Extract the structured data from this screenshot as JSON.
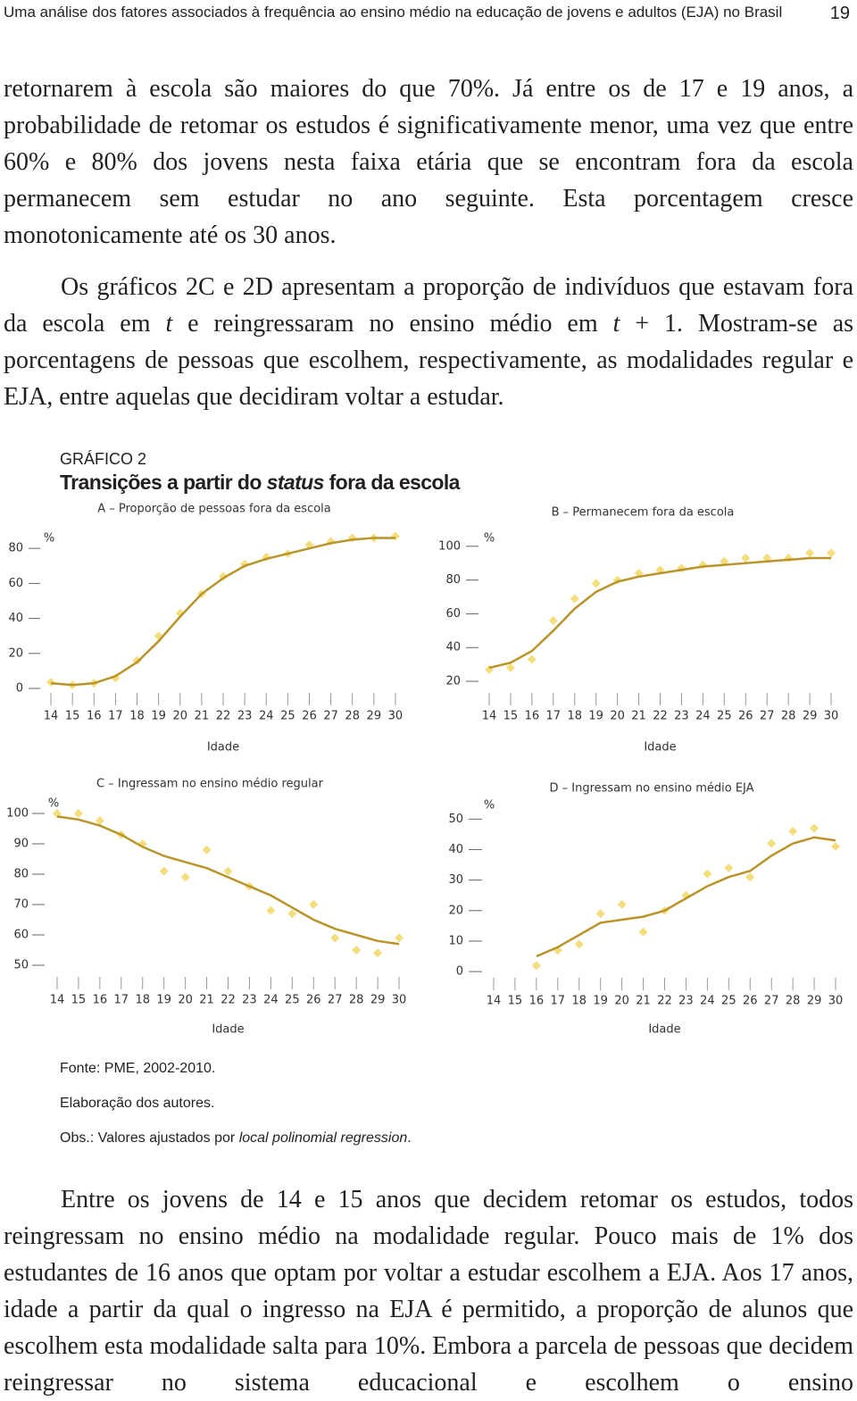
{
  "header": {
    "running_title": "Uma análise dos fatores associados à frequência ao ensino médio na educação de jovens e adultos (EJA) no Brasil",
    "page_number": "19"
  },
  "paragraphs": [
    [
      "retornarem à escola são maiores do que 70%. Já entre os de 17 e 19 anos, a probabilidade de retomar os estudos é significativamente menor, uma vez que entre 60% e 80% dos jovens nesta faixa etária que se encontram fora da escola permanecem sem estudar no ano seguinte. Esta porcentagem cresce monotonicamente até os 30 anos."
    ],
    [
      "Os gráficos 2C e 2D apresentam a proporção de indivíduos que estavam fora da escola em ",
      "t",
      " e reingressaram no ensino médio em ",
      "t",
      " + 1. Mostram-se as porcentagens de pessoas que escolhem, respectivamente, as modalidades regular e EJA, entre aquelas que decidiram voltar a estudar."
    ],
    [
      "Entre os jovens de 14 e 15 anos que decidem retomar os estudos, todos reingressam no ensino médio na modalidade regular. Pouco mais de 1% dos estudantes de 16 anos que optam por voltar a estudar escolhem a EJA. Aos 17 anos, idade a partir da qual o ingresso na EJA é permitido, a proporção de alunos que escolhem esta modalidade salta para 10%. Embora a parcela de pessoas que decidem reingressar no sistema educacional e escolhem o ensino"
    ]
  ],
  "figure": {
    "label": "GRÁFICO 2",
    "title": [
      "Transições a partir do ",
      "status",
      " fora da escola"
    ],
    "notes": {
      "source": "Fonte: PME, 2002-2010.",
      "author": "Elaboração dos autores.",
      "obs": [
        "Obs.:",
        " Valores ajustados por ",
        "local polinomial regression",
        "."
      ]
    }
  },
  "chart_data": [
    {
      "type": "scatter",
      "title": "A – Proporção de pessoas fora da escola",
      "xlabel": "Idade",
      "ylabel": "%",
      "x": [
        14,
        15,
        16,
        17,
        18,
        19,
        20,
        21,
        22,
        23,
        24,
        25,
        26,
        27,
        28,
        29,
        30
      ],
      "xlim": [
        13.5,
        30.5
      ],
      "xticks": [
        14,
        15,
        16,
        17,
        18,
        19,
        20,
        21,
        22,
        23,
        24,
        25,
        26,
        27,
        28,
        29,
        30
      ],
      "ylim": [
        0,
        90
      ],
      "yticks": [
        0,
        20,
        40,
        60,
        80
      ],
      "series": [
        {
          "type": "scatter",
          "color": "#f4dd7c",
          "values": [
            3.5,
            2,
            3,
            6,
            16,
            30,
            43,
            54,
            64,
            71,
            75,
            77,
            82,
            84,
            86,
            86,
            87
          ]
        },
        {
          "type": "line",
          "color": "#b8942a",
          "values": [
            3,
            2,
            3,
            7,
            15,
            27,
            41,
            54,
            63,
            70,
            74,
            77,
            80,
            83,
            85,
            86,
            86
          ]
        }
      ]
    },
    {
      "type": "scatter",
      "title": "B – Permanecem fora da escola",
      "xlabel": "Idade",
      "ylabel": "%",
      "x": [
        14,
        15,
        16,
        17,
        18,
        19,
        20,
        21,
        22,
        23,
        24,
        25,
        26,
        27,
        28,
        29,
        30
      ],
      "xlim": [
        13.5,
        30.5
      ],
      "xticks": [
        14,
        15,
        16,
        17,
        18,
        19,
        20,
        21,
        22,
        23,
        24,
        25,
        26,
        27,
        28,
        29,
        30
      ],
      "ylim": [
        16,
        102
      ],
      "yticks": [
        20,
        40,
        60,
        80,
        100
      ],
      "series": [
        {
          "type": "scatter",
          "color": "#f4dd7c",
          "values": [
            27,
            28,
            33,
            56,
            69,
            78,
            80,
            84,
            86,
            87,
            89,
            91,
            93,
            93,
            93,
            96,
            96
          ]
        },
        {
          "type": "line",
          "color": "#b8942a",
          "values": [
            28,
            31,
            38,
            50,
            63,
            73,
            79,
            82,
            84,
            86,
            88,
            89,
            90,
            91,
            92,
            93,
            93
          ]
        }
      ]
    },
    {
      "type": "scatter",
      "title": "C – Ingressam no ensino médio regular",
      "xlabel": "Idade",
      "ylabel": "%",
      "x": [
        14,
        15,
        16,
        17,
        18,
        19,
        20,
        21,
        22,
        23,
        24,
        25,
        26,
        27,
        28,
        29,
        30
      ],
      "xlim": [
        13.5,
        30.5
      ],
      "xticks": [
        14,
        15,
        16,
        17,
        18,
        19,
        20,
        21,
        22,
        23,
        24,
        25,
        26,
        27,
        28,
        29,
        30
      ],
      "ylim": [
        48,
        102
      ],
      "yticks": [
        50,
        60,
        70,
        80,
        90,
        100
      ],
      "series": [
        {
          "type": "scatter",
          "color": "#f4dd7c",
          "values": [
            100,
            100,
            97.6,
            93,
            90,
            81,
            79,
            88,
            81,
            76,
            68,
            67,
            70,
            59,
            55,
            54,
            59
          ]
        },
        {
          "type": "line",
          "color": "#b8942a",
          "values": [
            99,
            98,
            96,
            93,
            89,
            86,
            84,
            82,
            79,
            76,
            73,
            69,
            65,
            62,
            60,
            58,
            57
          ]
        }
      ]
    },
    {
      "type": "scatter",
      "title": "D – Ingressam no ensino médio EJA",
      "xlabel": "Idade",
      "ylabel": "%",
      "x": [
        14,
        15,
        16,
        17,
        18,
        19,
        20,
        21,
        22,
        23,
        24,
        25,
        26,
        27,
        28,
        29,
        30
      ],
      "xlim": [
        13.5,
        30.5
      ],
      "xticks": [
        14,
        15,
        16,
        17,
        18,
        19,
        20,
        21,
        22,
        23,
        24,
        25,
        26,
        27,
        28,
        29,
        30
      ],
      "ylim": [
        -1,
        52
      ],
      "yticks": [
        0,
        10,
        20,
        30,
        40,
        50
      ],
      "series": [
        {
          "type": "scatter",
          "color": "#f4dd7c",
          "values": [
            null,
            null,
            2,
            7,
            9,
            19,
            22,
            13,
            20,
            25,
            32,
            34,
            31,
            42,
            46,
            47,
            41
          ]
        },
        {
          "type": "line",
          "color": "#b8942a",
          "values": [
            null,
            null,
            5,
            8,
            12,
            16,
            17,
            18,
            20,
            24,
            28,
            31,
            33,
            38,
            42,
            44,
            43
          ]
        }
      ]
    }
  ]
}
